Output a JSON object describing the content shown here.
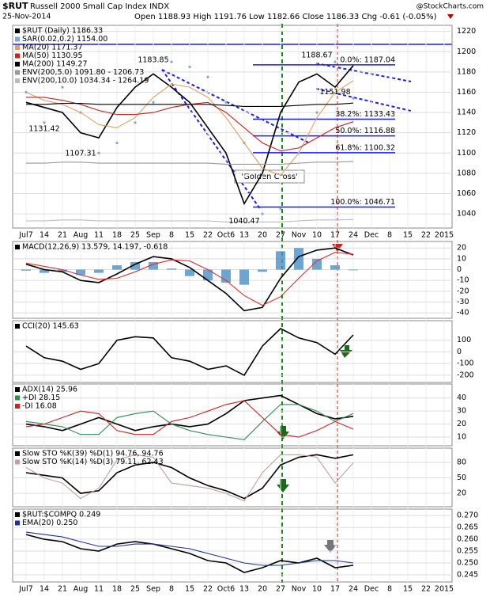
{
  "header": {
    "symbol": "$RUT",
    "name": "Russell 2000 Small Cap Index INDX",
    "date": "25-Nov-2014",
    "quote": "Open 1188.93 High 1191.76 Low 1182.66 Close 1186.33 Chg -0.61 (-0.05%)",
    "source": "@StockCharts.com"
  },
  "chart_data": [
    {
      "type": "line",
      "categories": [
        "Jul7",
        "14",
        "21",
        "Aug",
        "11",
        "18",
        "25",
        "Sep",
        "8",
        "15",
        "22",
        "Oct6",
        "13",
        "20",
        "27",
        "Nov",
        "10",
        "17",
        "24",
        "Dec",
        "8",
        "15",
        "22",
        "2015"
      ],
      "ylim": [
        1026,
        1226
      ],
      "yticks": [
        1040,
        1060,
        1080,
        1100,
        1120,
        1140,
        1160,
        1180,
        1200,
        1220
      ],
      "grid": true,
      "series": [
        {
          "name": "$RUT (Daily) 1186.33",
          "color": "#000000",
          "style": "line",
          "values": [
            1150,
            1145,
            1140,
            1120,
            1115,
            1145,
            1165,
            1178,
            1165,
            1150,
            1125,
            1100,
            1050,
            1080,
            1140,
            1170,
            1178,
            1165,
            1186.33,
            null,
            null,
            null,
            null,
            null
          ]
        },
        {
          "name": "SAR(0.02,0.2) 1154.00",
          "color": "#7fa7d8",
          "style": "dots",
          "values": [
            1160,
            1130,
            1165,
            1140,
            1100,
            1110,
            1130,
            1150,
            1190,
            1185,
            1175,
            1150,
            1110,
            1040,
            1045,
            1100,
            1140,
            1190,
            1154,
            null,
            null,
            null,
            null,
            null
          ]
        },
        {
          "name": "MA(20) 1171.37",
          "color": "#e0a060",
          "style": "line",
          "values": [
            1160,
            1152,
            1148,
            1140,
            1128,
            1125,
            1135,
            1155,
            1168,
            1165,
            1155,
            1135,
            1110,
            1085,
            1078,
            1100,
            1135,
            1160,
            1171.37,
            null,
            null,
            null,
            null,
            null
          ]
        },
        {
          "name": "MA(50) 1130.95",
          "color": "#d02020",
          "style": "line",
          "values": [
            1155,
            1155,
            1152,
            1148,
            1142,
            1138,
            1138,
            1140,
            1145,
            1148,
            1150,
            1140,
            1125,
            1110,
            1102,
            1105,
            1115,
            1125,
            1130.95,
            null,
            null,
            null,
            null,
            null
          ]
        },
        {
          "name": "MA(200) 1149.27",
          "color": "#000000",
          "style": "line",
          "values": [
            1148,
            1148,
            1149,
            1149,
            1148,
            1148,
            1148,
            1148,
            1148,
            1148,
            1148,
            1147,
            1146,
            1146,
            1146,
            1147,
            1148,
            1148,
            1149.27,
            null,
            null,
            null,
            null,
            null
          ]
        },
        {
          "name": "ENV(200,5.0) 1091.80 - 1206.73",
          "color": "#999999",
          "style": "line",
          "values": [
            1090,
            1090,
            1091,
            1091,
            1090,
            1090,
            1090,
            1090,
            1090,
            1090,
            1090,
            1089,
            1089,
            1089,
            1089,
            1090,
            1091,
            1091,
            1091.8,
            null,
            null,
            null,
            null,
            null
          ]
        },
        {
          "name": "ENV(200,10.0) 1034.34 - 1264.19",
          "color": "#bbbbbb",
          "style": "line",
          "values": [
            1033,
            1033,
            1034,
            1034,
            1033,
            1033,
            1033,
            1033,
            1033,
            1033,
            1033,
            1032,
            1032,
            1032,
            1032,
            1033,
            1034,
            1034,
            1034.34,
            null,
            null,
            null,
            null,
            null
          ]
        }
      ],
      "fib": [
        {
          "label": "0.0%: 1187.04",
          "value": 1187.04
        },
        {
          "label": "38.2%: 1133.43",
          "value": 1133.43
        },
        {
          "label": "50.0%: 1116.88",
          "value": 1116.88
        },
        {
          "label": "61.8%: 1100.32",
          "value": 1100.32
        },
        {
          "label": "100.0%: 1046.71",
          "value": 1046.71
        }
      ],
      "point_labels": [
        {
          "label": "1183.85",
          "value": 1183.85,
          "x": "Sep"
        },
        {
          "label": "1131.42",
          "value": 1131.42,
          "x": "14"
        },
        {
          "label": "1107.31",
          "value": 1107.31,
          "x": "Aug"
        },
        {
          "label": "1040.47",
          "value": 1040.47,
          "x": "13"
        },
        {
          "label": "1188.67",
          "value": 1188.67,
          "x": "10"
        },
        {
          "label": "1151.98",
          "value": 1151.98,
          "x": "17"
        }
      ],
      "annotation": "'Golden Cross'"
    },
    {
      "type": "line",
      "ylim": [
        -45,
        26
      ],
      "yticks": [
        -40,
        -30,
        -20,
        -10,
        0,
        10,
        20
      ],
      "grid": true,
      "histogram": {
        "color": "#4a90c8",
        "values": [
          -1,
          -3,
          -2,
          -5,
          -3,
          4,
          7,
          7,
          1,
          -6,
          -10,
          -12,
          -14,
          -2,
          17,
          20,
          10,
          4,
          -0.618,
          null,
          null,
          null,
          null,
          null
        ]
      },
      "series": [
        {
          "name": "MACD(12,26,9) 13.579, 14.197, -0.618",
          "color": "#000000",
          "style": "line",
          "values": [
            5,
            0,
            -2,
            -10,
            -12,
            -4,
            5,
            12,
            10,
            2,
            -10,
            -22,
            -38,
            -35,
            -8,
            12,
            18,
            20,
            13.579,
            null,
            null,
            null,
            null,
            null
          ]
        },
        {
          "color": "#e03030",
          "style": "line",
          "values": [
            6,
            3,
            0,
            -5,
            -9,
            -8,
            -2,
            5,
            9,
            8,
            0,
            -10,
            -24,
            -33,
            -25,
            -8,
            8,
            16,
            14.197,
            null,
            null,
            null,
            null,
            null
          ]
        }
      ]
    },
    {
      "type": "line",
      "ylim": [
        -262,
        268
      ],
      "yticks": [
        -200,
        -100,
        0,
        100
      ],
      "grid": true,
      "series": [
        {
          "name": "CCI(20) 145.63",
          "color": "#000000",
          "style": "line",
          "values": [
            50,
            -50,
            -80,
            -150,
            -100,
            100,
            130,
            120,
            -50,
            -80,
            -150,
            -120,
            -200,
            50,
            200,
            120,
            80,
            -20,
            145.63,
            null,
            null,
            null,
            null,
            null
          ]
        }
      ]
    },
    {
      "type": "line",
      "ylim": [
        3.3,
        50.8
      ],
      "yticks": [
        10,
        20,
        30,
        40
      ],
      "grid": true,
      "series": [
        {
          "name": "ADX(14) 25.96",
          "color": "#000000",
          "style": "line",
          "values": [
            20,
            18,
            15,
            20,
            25,
            20,
            15,
            18,
            20,
            18,
            20,
            28,
            38,
            40,
            42,
            35,
            28,
            24,
            25.96,
            null,
            null,
            null,
            null,
            null
          ]
        },
        {
          "name": "+DI 28.15",
          "color": "#2e8b57",
          "style": "line",
          "values": [
            22,
            20,
            18,
            12,
            12,
            25,
            28,
            30,
            20,
            15,
            12,
            10,
            8,
            22,
            35,
            35,
            30,
            22,
            28.15,
            null,
            null,
            null,
            null,
            null
          ]
        },
        {
          "name": "-DI 16.08",
          "color": "#d02020",
          "style": "line",
          "values": [
            18,
            20,
            25,
            30,
            28,
            15,
            12,
            12,
            22,
            25,
            30,
            35,
            38,
            25,
            12,
            10,
            15,
            22,
            16.08,
            null,
            null,
            null,
            null,
            null
          ]
        }
      ]
    },
    {
      "type": "line",
      "ylim": [
        -6,
        107.7
      ],
      "yticks": [
        20,
        50,
        80
      ],
      "grid": true,
      "series": [
        {
          "name": "Slow STO %K(39) %D(1) 94.76, 94.76",
          "color": "#000000",
          "style": "line",
          "values": [
            60,
            55,
            50,
            20,
            25,
            60,
            75,
            80,
            70,
            50,
            35,
            25,
            10,
            30,
            75,
            90,
            95,
            88,
            94.76,
            null,
            null,
            null,
            null,
            null
          ]
        },
        {
          "name": "Slow STO %K(14) %D(3) 79.11, 62.43",
          "color": "#c0a0a0",
          "style": "line",
          "values": [
            70,
            50,
            40,
            10,
            30,
            85,
            95,
            90,
            40,
            35,
            30,
            20,
            5,
            60,
            95,
            95,
            90,
            40,
            79.11,
            null,
            null,
            null,
            null,
            null
          ]
        }
      ]
    },
    {
      "type": "line",
      "categories": [
        "Jul7",
        "14",
        "21",
        "Aug",
        "11",
        "18",
        "25",
        "Sep",
        "8",
        "15",
        "22",
        "Oct6",
        "13",
        "20",
        "27",
        "Nov",
        "10",
        "17",
        "24",
        "Dec",
        "8",
        "15",
        "22",
        "2015"
      ],
      "ylim": [
        0.242,
        0.2727
      ],
      "yticks": [
        {
          "value": 0.245,
          "label": "0.245"
        },
        {
          "value": 0.25,
          "label": "0.250"
        },
        {
          "value": 0.255,
          "label": "0.255"
        },
        {
          "value": 0.26,
          "label": "0.260"
        },
        {
          "value": 0.265,
          "label": "0.265"
        },
        {
          "value": 0.27,
          "label": "0.270"
        }
      ],
      "grid": true,
      "series": [
        {
          "name": "$RUT:$COMPQ 0.249",
          "color": "#000000",
          "style": "line",
          "values": [
            0.262,
            0.26,
            0.259,
            0.256,
            0.255,
            0.258,
            0.259,
            0.258,
            0.256,
            0.254,
            0.251,
            0.25,
            0.246,
            0.248,
            0.251,
            0.25,
            0.252,
            0.248,
            0.249,
            null,
            null,
            null,
            null,
            null
          ]
        },
        {
          "name": "EMA(20) 0.250",
          "color": "#2030a0",
          "style": "line",
          "values": [
            0.263,
            0.262,
            0.261,
            0.259,
            0.257,
            0.257,
            0.258,
            0.258,
            0.257,
            0.256,
            0.254,
            0.252,
            0.25,
            0.249,
            0.249,
            0.25,
            0.251,
            0.251,
            0.25,
            null,
            null,
            null,
            null,
            null
          ]
        }
      ]
    }
  ]
}
